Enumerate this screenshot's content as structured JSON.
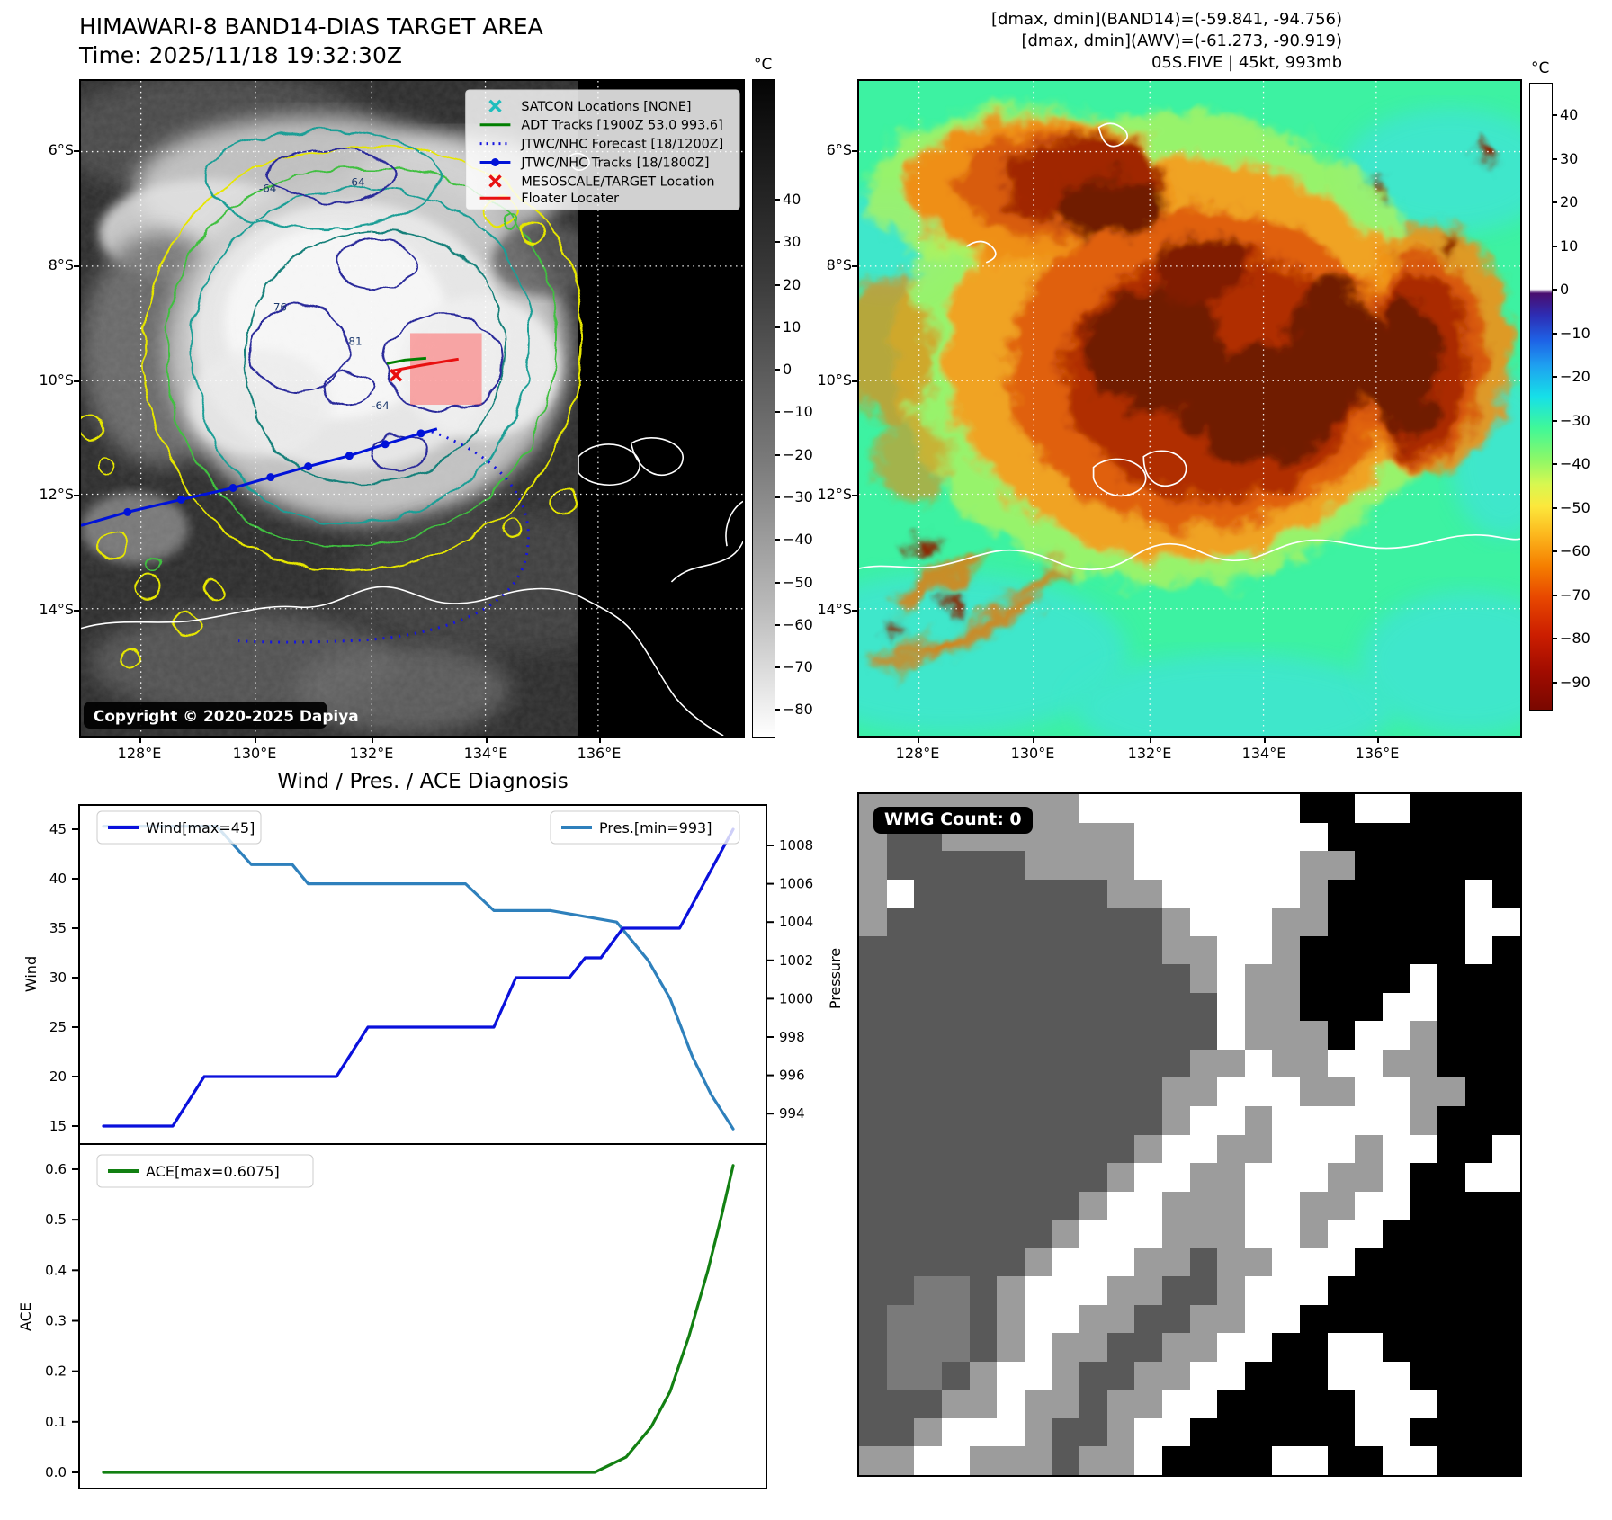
{
  "header": {
    "title": "HIMAWARI-8 BAND14-DIAS TARGET AREA",
    "time": "Time: 2025/11/18 19:32:30Z"
  },
  "info_lines": [
    "[dmax, dmin](BAND14)=(-59.841, -94.756)",
    "[dmax, dmin](AWV)=(-61.273, -90.919)",
    "05S.FIVE | 45kt, 993mb"
  ],
  "left_map": {
    "legend": [
      {
        "label": "SATCON Locations [NONE]"
      },
      {
        "label": "ADT Tracks [1900Z 53.0 993.6]"
      },
      {
        "label": "JTWC/NHC Forecast [18/1200Z]"
      },
      {
        "label": "JTWC/NHC Tracks [18/1800Z]"
      },
      {
        "label": "MESOSCALE/TARGET Location"
      },
      {
        "label": "Floater Locater"
      }
    ],
    "copyright": "Copyright © 2020-2025 Dapiya",
    "contour_labels": [
      {
        "t": "-64"
      },
      {
        "t": "64"
      },
      {
        "t": "76"
      },
      {
        "t": "81"
      },
      {
        "t": "-64"
      }
    ],
    "lat_ticks": [
      "6°S",
      "8°S",
      "10°S",
      "12°S",
      "14°S"
    ],
    "lon_ticks": [
      "128°E",
      "130°E",
      "132°E",
      "134°E",
      "136°E"
    ],
    "colorbar": {
      "unit": "°C",
      "ticks": [
        "40",
        "30",
        "20",
        "10",
        "0",
        "−10",
        "−20",
        "−30",
        "−40",
        "−50",
        "−60",
        "−70",
        "−80"
      ]
    }
  },
  "right_map": {
    "lat_ticks": [
      "6°S",
      "8°S",
      "10°S",
      "12°S",
      "14°S"
    ],
    "lon_ticks": [
      "128°E",
      "130°E",
      "132°E",
      "134°E",
      "136°E"
    ],
    "colorbar": {
      "unit": "°C",
      "ticks": [
        "40",
        "30",
        "20",
        "10",
        "0",
        "−10",
        "−20",
        "−30",
        "−40",
        "−50",
        "−60",
        "−70",
        "−80",
        "−90"
      ]
    }
  },
  "wmg": {
    "badge": "WMG Count: 0",
    "palette": {
      "k": "#000000",
      "w": "#ffffff",
      "g": "#9c9c9c",
      "d": "#595959",
      "m": "#7a7a7a"
    },
    "grid": [
      "ggggggggwwwwwwwwkkwwkkkk",
      "gddgggggggwwwwwwwkkkkkkk",
      "gdddddggggwwwwwwggkkkkkk",
      "gwdddddddggwwwwwgkkkkkwk",
      "gddddddddddgwwwggkkkkkww",
      "dddddddddddggwwgkkkkkkwk",
      "ddddddddddddgwggkkkkwkkk",
      "dddddddddddddwggkkkwwkkk",
      "dddddddddddddwgggkwwgkkk",
      "ddddddddddddggwggwwggkkk",
      "dddddddddddggwwwggwwggkk",
      "dddddddddddgwwgwwwwwgkkk",
      "ddddddddddgwwggwwwgwwkkw",
      "dddddddddgwwggwwwggwkkww",
      "ddddddddgwwgggwwggwwkkkk",
      "dddddddgwwwgggwwgwwkkkkk",
      "ddddddgwwwggdggwwwkkkkkk",
      "ddmmdgwwwggddgwwwkkkkkkk",
      "dmmmdgwwggddggwwkkkkkkkk",
      "dmmmdgwggddggwwkkwwkkkkk",
      "dmmdgwwgddggwwkkkwwwkkkk",
      "dddggwggdggwwkkkkkwwwkkk",
      "ddgwwwgddgwwkkkkkkwwkkkk",
      "ggwwgggdggwkkkkwwkkwwkkk"
    ]
  },
  "chart_data": [
    {
      "type": "line",
      "title": "Wind / Pres. / ACE Diagnosis",
      "xlabel": "",
      "x_note": "time axis shown without tick labels; x given as 0-1 fraction",
      "ylabel": "Wind",
      "ylim": [
        13.2,
        47.5
      ],
      "yticks": [
        45,
        40,
        35,
        30,
        25,
        20,
        15
      ],
      "y2label": "Pressure",
      "y2lim": [
        992.4,
        1010.1
      ],
      "y2ticks": [
        1008,
        1006,
        1004,
        1002,
        1000,
        998,
        996,
        994
      ],
      "legend_position": "upper left / upper right",
      "grid": false,
      "series": [
        {
          "name": "Wind[max=45]",
          "axis": "left",
          "color": "#0a10dc",
          "points": [
            [
              0,
              15
            ],
            [
              0.11,
              15
            ],
            [
              0.16,
              20
            ],
            [
              0.37,
              20
            ],
            [
              0.42,
              25
            ],
            [
              0.62,
              25
            ],
            [
              0.655,
              30
            ],
            [
              0.74,
              30
            ],
            [
              0.765,
              32
            ],
            [
              0.79,
              32
            ],
            [
              0.825,
              35
            ],
            [
              0.915,
              35
            ],
            [
              1,
              45
            ]
          ]
        },
        {
          "name": "Pres.[min=993]",
          "axis": "right",
          "color": "#2e80bc",
          "points": [
            [
              0,
              1009
            ],
            [
              0.18,
              1009
            ],
            [
              0.235,
              1007
            ],
            [
              0.3,
              1007
            ],
            [
              0.325,
              1006
            ],
            [
              0.575,
              1006
            ],
            [
              0.62,
              1004.6
            ],
            [
              0.71,
              1004.6
            ],
            [
              0.815,
              1004
            ],
            [
              0.865,
              1002
            ],
            [
              0.9,
              1000
            ],
            [
              0.935,
              997
            ],
            [
              0.965,
              995
            ],
            [
              1,
              993.2
            ]
          ]
        }
      ]
    },
    {
      "type": "line",
      "title": "",
      "ylabel": "ACE",
      "ylim": [
        -0.032,
        0.65
      ],
      "yticks": [
        "0.6",
        "0.5",
        "0.4",
        "0.3",
        "0.2",
        "0.1",
        "0.0"
      ],
      "legend_position": "upper left",
      "grid": false,
      "series": [
        {
          "name": "ACE[max=0.6075]",
          "color": "#128012",
          "points": [
            [
              0,
              0
            ],
            [
              0.78,
              0
            ],
            [
              0.83,
              0.03
            ],
            [
              0.87,
              0.09
            ],
            [
              0.9,
              0.16
            ],
            [
              0.93,
              0.27
            ],
            [
              0.96,
              0.4
            ],
            [
              0.98,
              0.5
            ],
            [
              1,
              0.6075
            ]
          ]
        }
      ]
    }
  ]
}
